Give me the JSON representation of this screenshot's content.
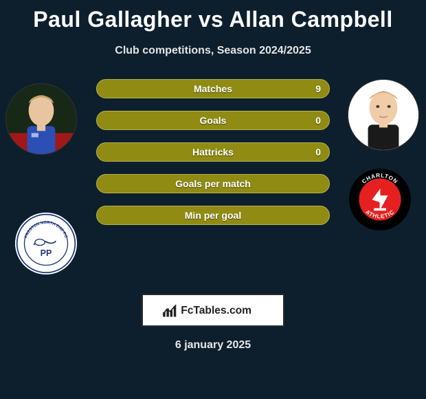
{
  "title": {
    "player1": "Paul Gallagher",
    "player2": "Allan Campbell",
    "color": "#ffffff",
    "fontsize": 32
  },
  "subtitle": "Club competitions, Season 2024/2025",
  "players": {
    "left": {
      "name": "Paul Gallagher",
      "avatar_bg": "#1a2a18",
      "shirt_color": "#2b4fb5",
      "hair_color": "#c7a168",
      "skin_color": "#e8c4a0",
      "club_name": "Preston North End",
      "club_bg": "#ffffff",
      "club_text_color": "#1e3a7a",
      "club_accent": "#1e3a7a"
    },
    "right": {
      "name": "Allan Campbell",
      "avatar_bg": "#ffffff",
      "shirt_color": "#1a1a1a",
      "hair_color": "#d49b5a",
      "skin_color": "#f0cda8",
      "club_name": "Charlton Athletic",
      "club_bg": "#000000",
      "club_inner": "#e62020",
      "club_text_color": "#ffffff"
    }
  },
  "stats": {
    "bar_bg": "#8f8b13",
    "bar_border": "#b8b350",
    "label_color": "#ffffff",
    "rows": [
      {
        "label": "Matches",
        "left": "",
        "right": "9"
      },
      {
        "label": "Goals",
        "left": "",
        "right": "0"
      },
      {
        "label": "Hattricks",
        "left": "",
        "right": "0"
      },
      {
        "label": "Goals per match",
        "left": "",
        "right": ""
      },
      {
        "label": "Min per goal",
        "left": "",
        "right": ""
      }
    ]
  },
  "brand": "FcTables.com",
  "date": "6 january 2025",
  "background_color": "#0d1f2d"
}
